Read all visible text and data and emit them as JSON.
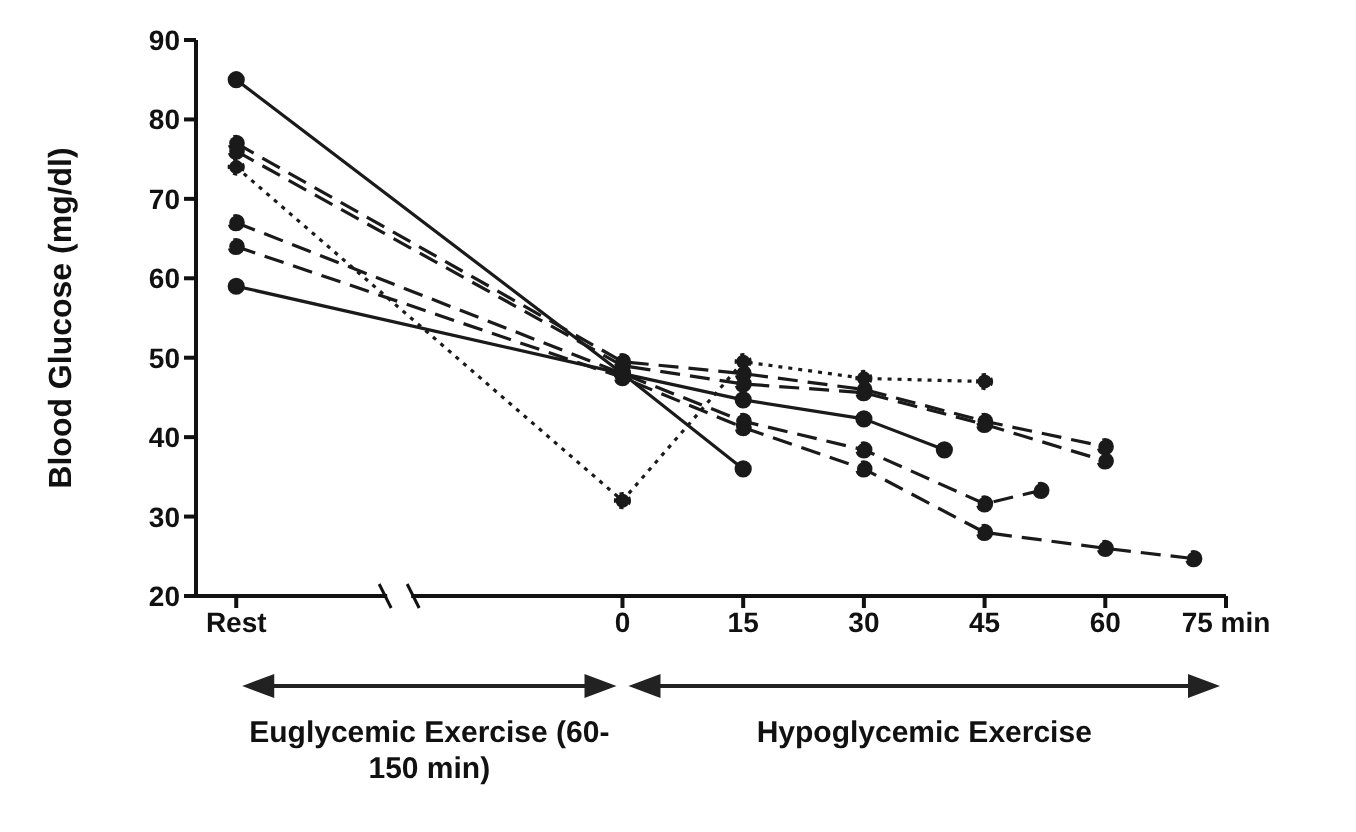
{
  "chart_data": {
    "type": "line",
    "ylabel": "Blood Glucose (mg/dl)",
    "xlim": [
      -53,
      75
    ],
    "xticks": [
      {
        "value": -48,
        "label": "Rest"
      },
      0,
      15,
      30,
      45,
      60,
      {
        "value": 75,
        "label": "75 min"
      }
    ],
    "ylim": [
      20,
      90
    ],
    "yticks": [
      20,
      30,
      40,
      50,
      60,
      70,
      80,
      90
    ],
    "grid": false,
    "legend": false,
    "marker": "circle",
    "annotations": [
      "Euglycemic Exercise (60-150 min)",
      "Hypoglycemic Exercise"
    ],
    "series": [
      {
        "color": "#1a1a1a",
        "line_style": "solid",
        "x": [
          -48,
          0,
          15
        ],
        "values": [
          85,
          48,
          36
        ]
      },
      {
        "color": "#1a1a1a",
        "line_style": "dotted",
        "x": [
          -48,
          0,
          15,
          30,
          45
        ],
        "values": [
          74,
          32,
          49.5,
          47.4,
          47
        ]
      },
      {
        "color": "#1a1a1a",
        "line_style": "solid",
        "x": [
          -48,
          0,
          15,
          30,
          40
        ],
        "values": [
          59,
          48,
          44.7,
          42.3,
          38.4
        ]
      },
      {
        "color": "#1a1a1a",
        "line_style": "dashed",
        "x": [
          -48,
          0,
          15,
          30,
          45,
          60
        ],
        "values": [
          77,
          49.5,
          48,
          46,
          42,
          38.8
        ]
      },
      {
        "color": "#1a1a1a",
        "line_style": "dashed",
        "x": [
          -48,
          0,
          15,
          30,
          45,
          60
        ],
        "values": [
          76,
          49,
          46.7,
          45.6,
          41.6,
          37
        ]
      },
      {
        "color": "#1a1a1a",
        "line_style": "dashed",
        "x": [
          -48,
          0,
          15,
          30,
          45,
          52
        ],
        "values": [
          67,
          48,
          42,
          38.4,
          31.6,
          33.3
        ]
      },
      {
        "color": "#1a1a1a",
        "line_style": "dashed",
        "x": [
          -48,
          0,
          15,
          30,
          45,
          60,
          71
        ],
        "values": [
          64,
          47.5,
          41.2,
          36,
          28,
          26,
          24.7
        ]
      }
    ]
  }
}
